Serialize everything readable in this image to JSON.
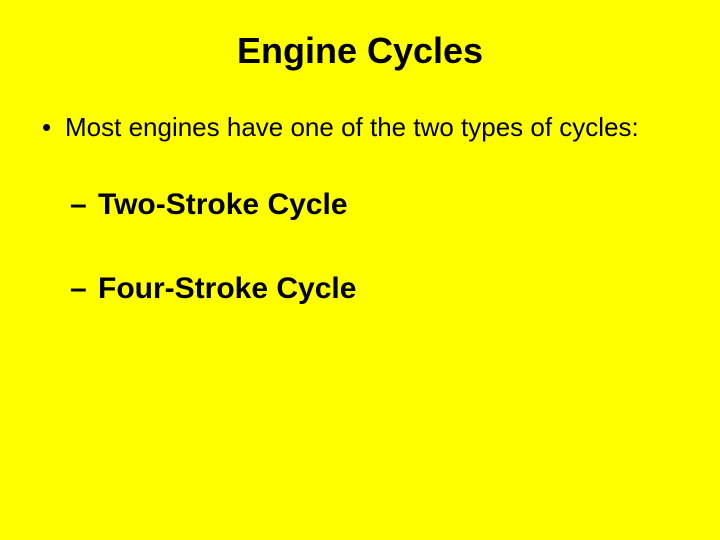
{
  "slide": {
    "background_color": "#ffff00",
    "text_color": "#000000",
    "title": {
      "text": "Engine Cycles",
      "fontsize": 36,
      "fontweight": "bold"
    },
    "bullet": {
      "text": "Most engines have one of the two types of cycles:",
      "fontsize": 26,
      "fontweight": "normal"
    },
    "sub_items": [
      {
        "text": "Two-Stroke Cycle",
        "fontsize": 30,
        "fontweight": "bold"
      },
      {
        "text": "Four-Stroke Cycle",
        "fontsize": 30,
        "fontweight": "bold"
      }
    ]
  }
}
